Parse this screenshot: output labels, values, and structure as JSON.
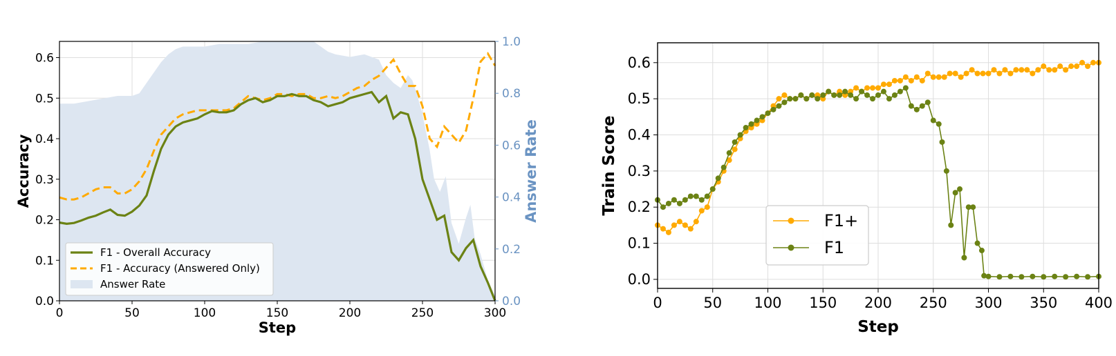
{
  "chart_data": [
    {
      "type": "line",
      "xlabel": "Step",
      "ylabel": "Accuracy",
      "y2label": "Answer Rate",
      "xlim": [
        0,
        300
      ],
      "ylim": [
        0,
        0.64
      ],
      "y2lim": [
        0,
        1.0
      ],
      "xticks": [
        0,
        50,
        100,
        150,
        200,
        250,
        300
      ],
      "yticks": [
        0.0,
        0.1,
        0.2,
        0.3,
        0.4,
        0.5,
        0.6
      ],
      "y2ticks": [
        0.0,
        0.2,
        0.4,
        0.6,
        0.8,
        1.0
      ],
      "grid": true,
      "legend": "lower-left",
      "colors": {
        "overall": "#6b8214",
        "answered": "#ffaa00",
        "answer_rate": "#dde6f1",
        "right_axis": "#6a93c2"
      },
      "series": [
        {
          "name": "F1 - Overall Accuracy",
          "style": "solid",
          "x": [
            0,
            5,
            10,
            15,
            20,
            25,
            30,
            35,
            40,
            45,
            50,
            55,
            60,
            65,
            70,
            75,
            80,
            85,
            90,
            95,
            100,
            105,
            110,
            115,
            120,
            125,
            130,
            135,
            140,
            145,
            150,
            155,
            160,
            165,
            170,
            175,
            180,
            185,
            190,
            195,
            200,
            205,
            210,
            215,
            220,
            225,
            230,
            235,
            240,
            245,
            250,
            255,
            260,
            265,
            270,
            275,
            280,
            285,
            290,
            295,
            300
          ],
          "y": [
            0.193,
            0.19,
            0.192,
            0.198,
            0.205,
            0.21,
            0.218,
            0.225,
            0.212,
            0.21,
            0.22,
            0.235,
            0.26,
            0.32,
            0.375,
            0.41,
            0.43,
            0.44,
            0.445,
            0.45,
            0.46,
            0.468,
            0.465,
            0.465,
            0.47,
            0.485,
            0.495,
            0.5,
            0.49,
            0.495,
            0.505,
            0.505,
            0.51,
            0.505,
            0.505,
            0.495,
            0.49,
            0.48,
            0.485,
            0.49,
            0.5,
            0.505,
            0.51,
            0.515,
            0.49,
            0.505,
            0.45,
            0.465,
            0.46,
            0.4,
            0.3,
            0.25,
            0.2,
            0.21,
            0.12,
            0.1,
            0.13,
            0.15,
            0.085,
            0.045,
            0.0
          ]
        },
        {
          "name": "F1 - Accuracy (Answered Only)",
          "style": "dashed",
          "x": [
            0,
            5,
            10,
            15,
            20,
            25,
            30,
            35,
            40,
            45,
            50,
            55,
            60,
            65,
            70,
            75,
            80,
            85,
            90,
            95,
            100,
            105,
            110,
            115,
            120,
            125,
            130,
            135,
            140,
            145,
            150,
            155,
            160,
            165,
            170,
            175,
            180,
            185,
            190,
            195,
            200,
            205,
            210,
            215,
            220,
            225,
            230,
            235,
            240,
            245,
            250,
            255,
            260,
            265,
            270,
            275,
            280,
            285,
            290,
            295,
            300
          ],
          "y": [
            0.255,
            0.25,
            0.25,
            0.255,
            0.265,
            0.275,
            0.28,
            0.28,
            0.265,
            0.265,
            0.275,
            0.295,
            0.325,
            0.37,
            0.41,
            0.43,
            0.45,
            0.46,
            0.465,
            0.47,
            0.47,
            0.47,
            0.47,
            0.47,
            0.475,
            0.49,
            0.505,
            0.5,
            0.495,
            0.5,
            0.51,
            0.51,
            0.505,
            0.51,
            0.51,
            0.5,
            0.5,
            0.505,
            0.5,
            0.505,
            0.515,
            0.525,
            0.53,
            0.545,
            0.555,
            0.575,
            0.595,
            0.56,
            0.53,
            0.53,
            0.48,
            0.4,
            0.38,
            0.43,
            0.41,
            0.39,
            0.42,
            0.5,
            0.59,
            0.61,
            0.58
          ]
        },
        {
          "name": "Answer Rate",
          "style": "area",
          "x": [
            0,
            10,
            20,
            30,
            40,
            50,
            55,
            60,
            65,
            70,
            75,
            80,
            85,
            90,
            95,
            100,
            110,
            120,
            130,
            140,
            150,
            160,
            170,
            175,
            180,
            185,
            190,
            200,
            210,
            220,
            225,
            230,
            235,
            240,
            243,
            246,
            250,
            255,
            258,
            262,
            266,
            270,
            275,
            280,
            283,
            286,
            290,
            295,
            300
          ],
          "y": [
            0.76,
            0.76,
            0.77,
            0.78,
            0.79,
            0.79,
            0.8,
            0.84,
            0.88,
            0.92,
            0.95,
            0.97,
            0.98,
            0.98,
            0.98,
            0.98,
            0.99,
            0.99,
            0.99,
            1.0,
            1.0,
            1.0,
            1.0,
            1.0,
            0.98,
            0.96,
            0.95,
            0.94,
            0.95,
            0.93,
            0.87,
            0.84,
            0.82,
            0.87,
            0.85,
            0.8,
            0.72,
            0.58,
            0.47,
            0.42,
            0.48,
            0.3,
            0.22,
            0.32,
            0.37,
            0.24,
            0.18,
            0.08,
            0.02
          ]
        }
      ]
    },
    {
      "type": "line",
      "xlabel": "Step",
      "ylabel": "Train Score",
      "xlim": [
        0,
        400
      ],
      "ylim": [
        -0.025,
        0.655
      ],
      "xticks": [
        0,
        50,
        100,
        150,
        200,
        250,
        300,
        350,
        400
      ],
      "yticks": [
        0.0,
        0.1,
        0.2,
        0.3,
        0.4,
        0.5,
        0.6
      ],
      "grid": true,
      "legend": "center-left",
      "colors": {
        "f1plus": "#ffaa00",
        "f1": "#6b8214"
      },
      "series": [
        {
          "name": "F1+",
          "x": [
            0,
            5,
            10,
            15,
            20,
            25,
            30,
            35,
            40,
            45,
            50,
            55,
            60,
            65,
            70,
            75,
            80,
            85,
            90,
            95,
            100,
            105,
            110,
            115,
            120,
            125,
            130,
            135,
            140,
            145,
            150,
            155,
            160,
            165,
            170,
            175,
            180,
            185,
            190,
            195,
            200,
            205,
            210,
            215,
            220,
            225,
            230,
            235,
            240,
            245,
            250,
            255,
            260,
            265,
            270,
            275,
            280,
            285,
            290,
            295,
            300,
            305,
            310,
            315,
            320,
            325,
            330,
            335,
            340,
            345,
            350,
            355,
            360,
            365,
            370,
            375,
            380,
            385,
            390,
            395,
            400
          ],
          "y": [
            0.15,
            0.14,
            0.13,
            0.15,
            0.16,
            0.15,
            0.14,
            0.16,
            0.19,
            0.2,
            0.25,
            0.27,
            0.3,
            0.33,
            0.36,
            0.39,
            0.41,
            0.42,
            0.43,
            0.44,
            0.46,
            0.48,
            0.5,
            0.51,
            0.5,
            0.5,
            0.51,
            0.5,
            0.51,
            0.51,
            0.5,
            0.52,
            0.51,
            0.52,
            0.51,
            0.52,
            0.53,
            0.52,
            0.53,
            0.53,
            0.53,
            0.54,
            0.54,
            0.55,
            0.55,
            0.56,
            0.55,
            0.56,
            0.55,
            0.57,
            0.56,
            0.56,
            0.56,
            0.57,
            0.57,
            0.56,
            0.57,
            0.58,
            0.57,
            0.57,
            0.57,
            0.58,
            0.57,
            0.58,
            0.57,
            0.58,
            0.58,
            0.58,
            0.57,
            0.58,
            0.59,
            0.58,
            0.58,
            0.59,
            0.58,
            0.59,
            0.59,
            0.6,
            0.59,
            0.6,
            0.6
          ]
        },
        {
          "name": "F1",
          "x": [
            0,
            5,
            10,
            15,
            20,
            25,
            30,
            35,
            40,
            45,
            50,
            55,
            60,
            65,
            70,
            75,
            80,
            85,
            90,
            95,
            100,
            105,
            110,
            115,
            120,
            125,
            130,
            135,
            140,
            145,
            150,
            155,
            160,
            165,
            170,
            175,
            180,
            185,
            190,
            195,
            200,
            205,
            210,
            215,
            220,
            225,
            230,
            235,
            240,
            245,
            250,
            255,
            258,
            262,
            266,
            270,
            274,
            278,
            282,
            286,
            290,
            294,
            296,
            300,
            310,
            320,
            330,
            340,
            350,
            360,
            370,
            380,
            390,
            400
          ],
          "y": [
            0.22,
            0.2,
            0.21,
            0.22,
            0.21,
            0.22,
            0.23,
            0.23,
            0.22,
            0.23,
            0.25,
            0.28,
            0.31,
            0.35,
            0.38,
            0.4,
            0.42,
            0.43,
            0.44,
            0.45,
            0.46,
            0.47,
            0.48,
            0.49,
            0.5,
            0.5,
            0.51,
            0.5,
            0.51,
            0.5,
            0.51,
            0.52,
            0.51,
            0.51,
            0.52,
            0.51,
            0.5,
            0.52,
            0.51,
            0.5,
            0.51,
            0.52,
            0.5,
            0.51,
            0.52,
            0.53,
            0.48,
            0.47,
            0.48,
            0.49,
            0.44,
            0.43,
            0.38,
            0.3,
            0.15,
            0.24,
            0.25,
            0.06,
            0.2,
            0.2,
            0.1,
            0.08,
            0.01,
            0.008,
            0.007,
            0.008,
            0.007,
            0.008,
            0.007,
            0.008,
            0.007,
            0.008,
            0.007,
            0.008
          ]
        }
      ]
    }
  ]
}
